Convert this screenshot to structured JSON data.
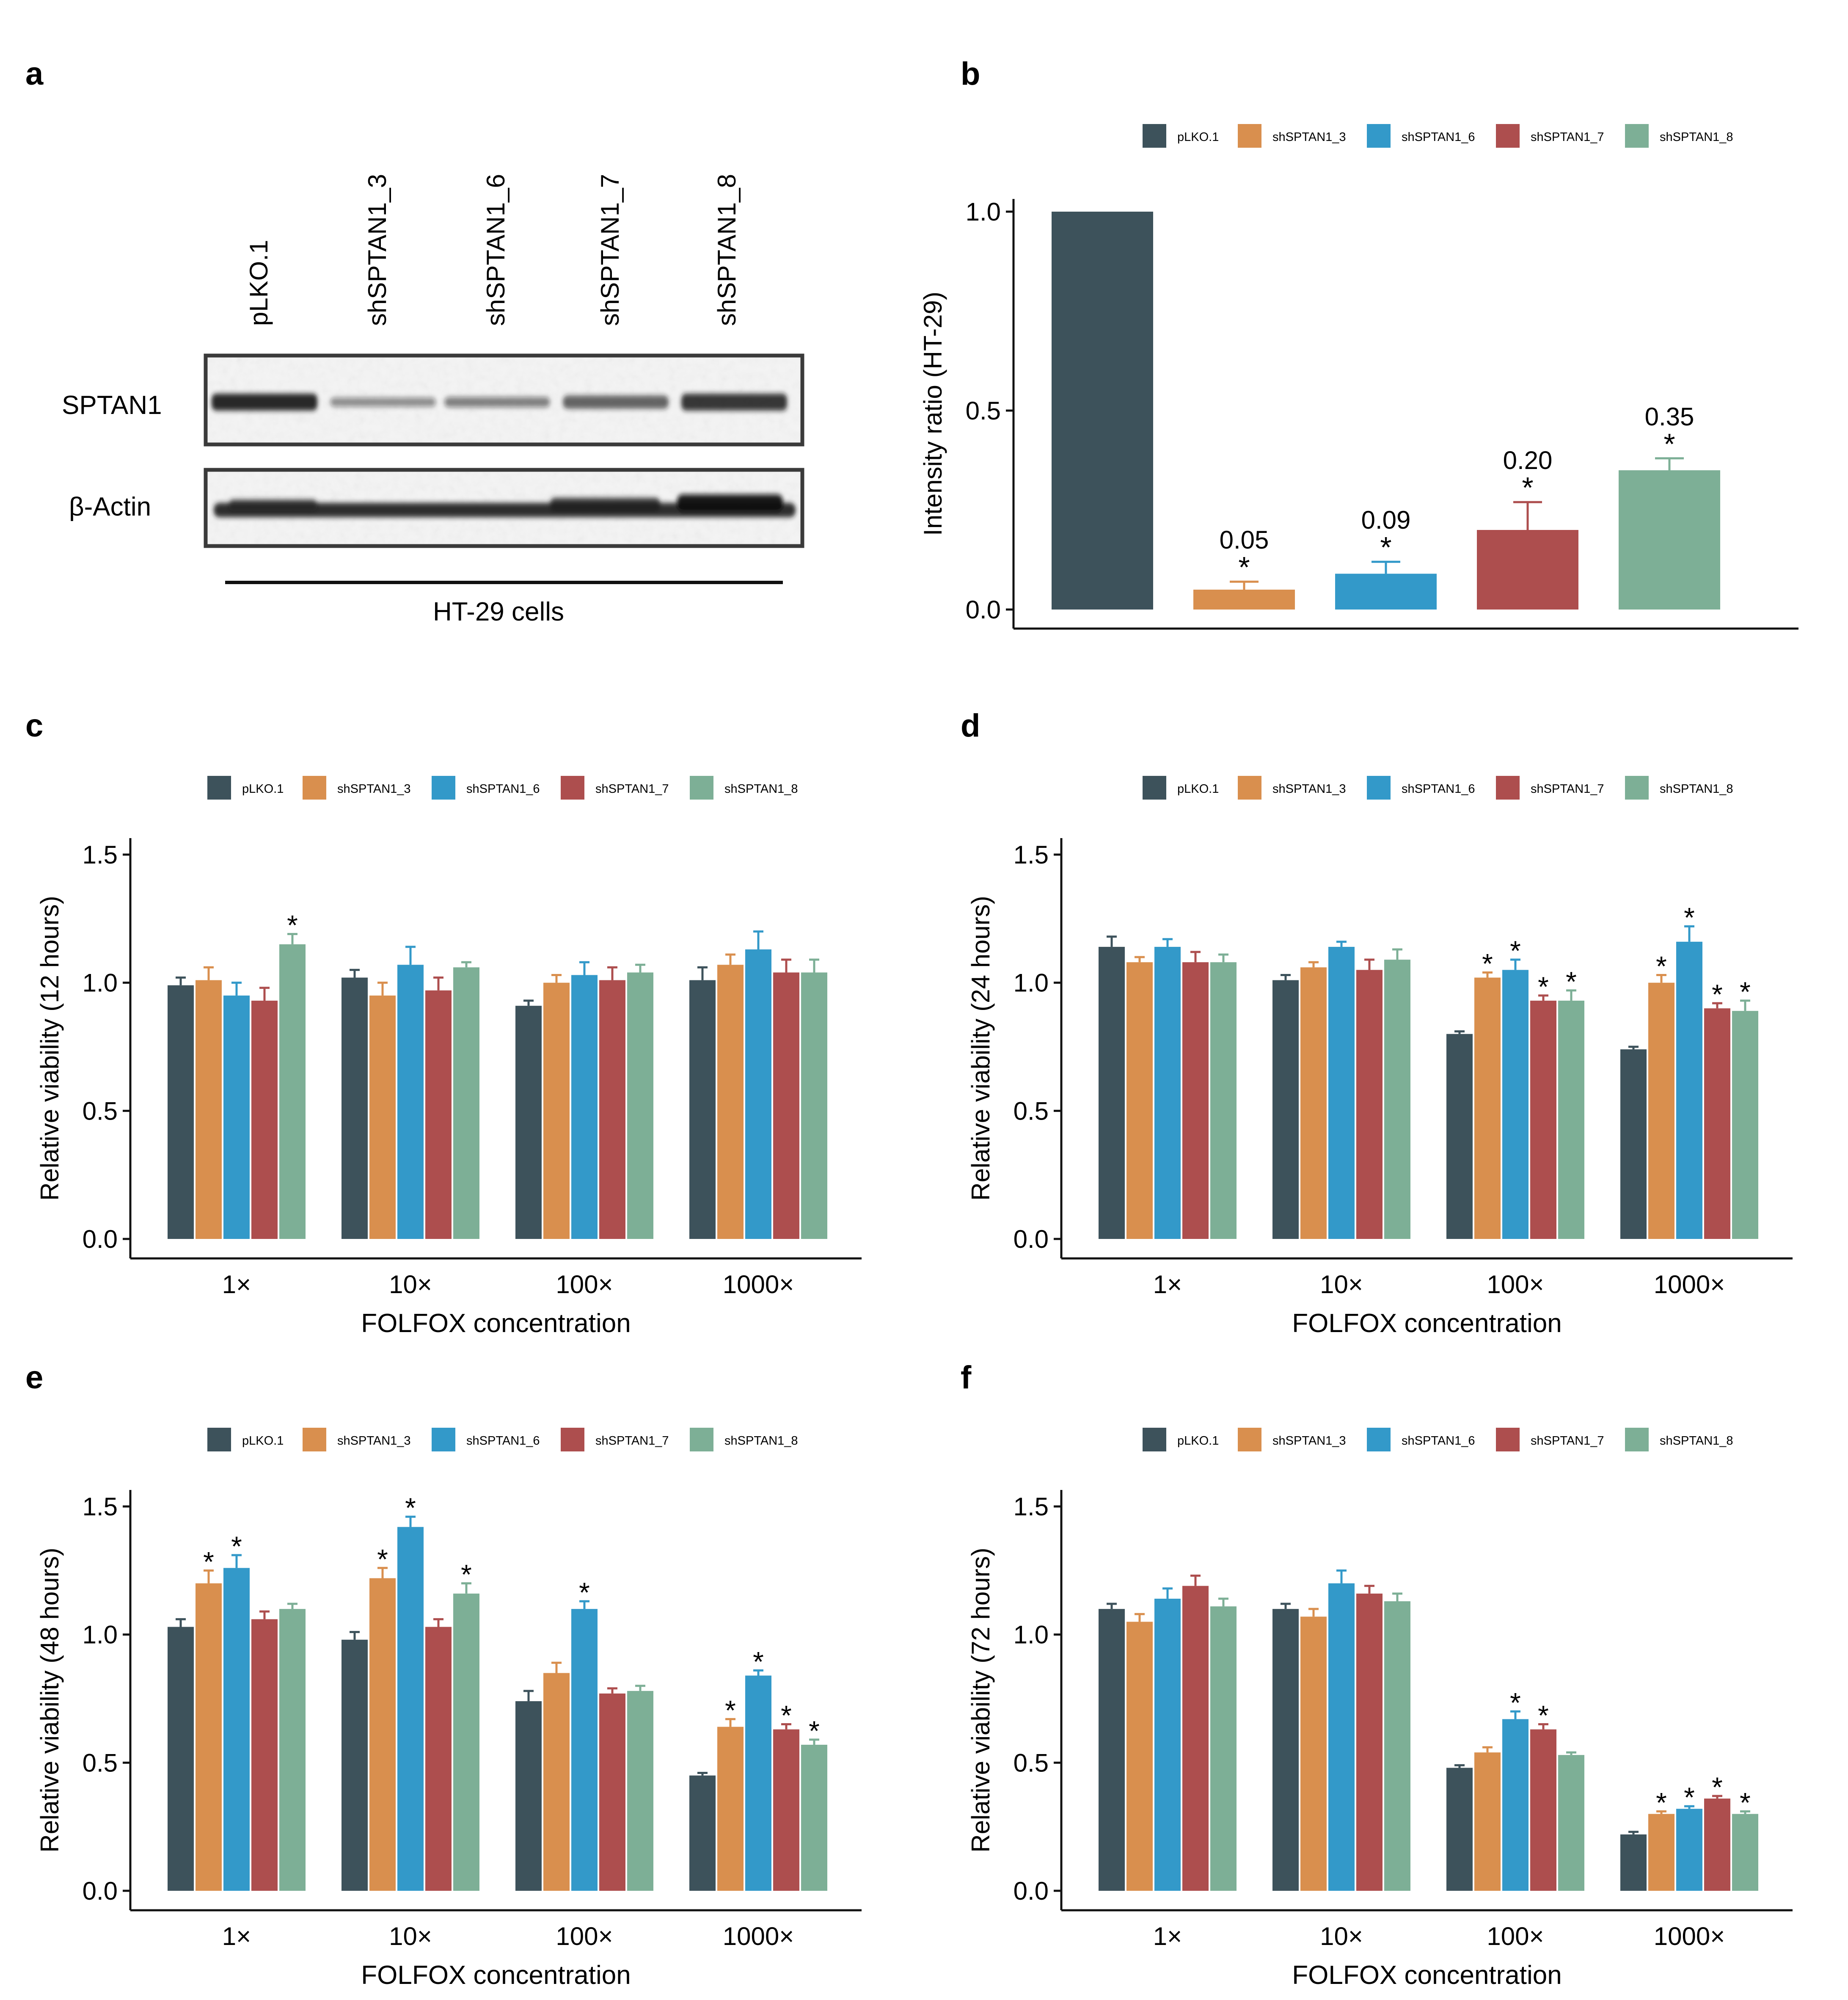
{
  "colors": {
    "pLKO.1": "#3d525b",
    "shSPTAN1_3": "#d98f4e",
    "shSPTAN1_6": "#3399c9",
    "shSPTAN1_7": "#ad4e4e",
    "shSPTAN1_8": "#7daf96"
  },
  "panel_a": {
    "label": "a",
    "lanes": [
      "pLKO.1",
      "shSPTAN1_3",
      "shSPTAN1_6",
      "shSPTAN1_7",
      "shSPTAN1_8"
    ],
    "row1_label": "SPTAN1",
    "row2_label": "β-Actin",
    "cell_line_label": "HT-29 cells",
    "sptan1_band_intensity": [
      1.0,
      0.05,
      0.09,
      0.2,
      0.35
    ]
  },
  "chart_data": [
    {
      "panel": "b",
      "type": "bar",
      "title": "",
      "xlabel": "",
      "ylabel": "Intensity ratio (HT-29)",
      "ylim": [
        0,
        1.0
      ],
      "yticks": [
        "0.0",
        "0.5",
        "1.0"
      ],
      "legend": [
        "pLKO.1",
        "shSPTAN1_3",
        "shSPTAN1_6",
        "shSPTAN1_7",
        "shSPTAN1_8"
      ],
      "legend_position": "top",
      "series": [
        {
          "name": "pLKO.1",
          "value": 1.0,
          "err": 0,
          "label": "",
          "sig": ""
        },
        {
          "name": "shSPTAN1_3",
          "value": 0.05,
          "err": 0.02,
          "label": "0.05",
          "sig": "*"
        },
        {
          "name": "shSPTAN1_6",
          "value": 0.09,
          "err": 0.03,
          "label": "0.09",
          "sig": "*"
        },
        {
          "name": "shSPTAN1_7",
          "value": 0.2,
          "err": 0.07,
          "label": "0.20",
          "sig": "*"
        },
        {
          "name": "shSPTAN1_8",
          "value": 0.35,
          "err": 0.03,
          "label": "0.35",
          "sig": "*"
        }
      ]
    },
    {
      "panel": "c",
      "type": "bar",
      "xlabel": "FOLFOX concentration",
      "ylabel": "Relative viability (12 hours)",
      "ylim": [
        0,
        1.5
      ],
      "yticks": [
        "0.0",
        "0.5",
        "1.0",
        "1.5"
      ],
      "categories": [
        "1×",
        "10×",
        "100×",
        "1000×"
      ],
      "legend_position": "top",
      "series": [
        {
          "name": "pLKO.1",
          "values": [
            0.99,
            1.02,
            0.91,
            1.01
          ],
          "err": [
            0.03,
            0.03,
            0.02,
            0.05
          ],
          "sig": [
            "",
            "",
            "",
            ""
          ]
        },
        {
          "name": "shSPTAN1_3",
          "values": [
            1.01,
            0.95,
            1.0,
            1.07
          ],
          "err": [
            0.05,
            0.05,
            0.03,
            0.04
          ],
          "sig": [
            "",
            "",
            "",
            ""
          ]
        },
        {
          "name": "shSPTAN1_6",
          "values": [
            0.95,
            1.07,
            1.03,
            1.13
          ],
          "err": [
            0.05,
            0.07,
            0.05,
            0.07
          ],
          "sig": [
            "",
            "",
            "",
            ""
          ]
        },
        {
          "name": "shSPTAN1_7",
          "values": [
            0.93,
            0.97,
            1.01,
            1.04
          ],
          "err": [
            0.05,
            0.05,
            0.05,
            0.05
          ],
          "sig": [
            "",
            "",
            "",
            ""
          ]
        },
        {
          "name": "shSPTAN1_8",
          "values": [
            1.15,
            1.06,
            1.04,
            1.04
          ],
          "err": [
            0.04,
            0.02,
            0.03,
            0.05
          ],
          "sig": [
            "*",
            "",
            "",
            ""
          ]
        }
      ]
    },
    {
      "panel": "d",
      "type": "bar",
      "xlabel": "FOLFOX concentration",
      "ylabel": "Relative viability (24 hours)",
      "ylim": [
        0,
        1.5
      ],
      "yticks": [
        "0.0",
        "0.5",
        "1.0",
        "1.5"
      ],
      "categories": [
        "1×",
        "10×",
        "100×",
        "1000×"
      ],
      "legend_position": "top",
      "series": [
        {
          "name": "pLKO.1",
          "values": [
            1.14,
            1.01,
            0.8,
            0.74
          ],
          "err": [
            0.04,
            0.02,
            0.01,
            0.01
          ],
          "sig": [
            "",
            "",
            "",
            ""
          ]
        },
        {
          "name": "shSPTAN1_3",
          "values": [
            1.08,
            1.06,
            1.02,
            1.0
          ],
          "err": [
            0.02,
            0.02,
            0.02,
            0.03
          ],
          "sig": [
            "",
            "",
            "*",
            "*"
          ]
        },
        {
          "name": "shSPTAN1_6",
          "values": [
            1.14,
            1.14,
            1.05,
            1.16
          ],
          "err": [
            0.03,
            0.02,
            0.04,
            0.06
          ],
          "sig": [
            "",
            "",
            "*",
            "*"
          ]
        },
        {
          "name": "shSPTAN1_7",
          "values": [
            1.08,
            1.05,
            0.93,
            0.9
          ],
          "err": [
            0.04,
            0.04,
            0.02,
            0.02
          ],
          "sig": [
            "",
            "",
            "*",
            "*"
          ]
        },
        {
          "name": "shSPTAN1_8",
          "values": [
            1.08,
            1.09,
            0.93,
            0.89
          ],
          "err": [
            0.03,
            0.04,
            0.04,
            0.04
          ],
          "sig": [
            "",
            "",
            "*",
            "*"
          ]
        }
      ]
    },
    {
      "panel": "e",
      "type": "bar",
      "xlabel": "FOLFOX concentration",
      "ylabel": "Relative viability (48 hours)",
      "ylim": [
        0,
        1.5
      ],
      "yticks": [
        "0.0",
        "0.5",
        "1.0",
        "1.5"
      ],
      "categories": [
        "1×",
        "10×",
        "100×",
        "1000×"
      ],
      "legend_position": "top",
      "series": [
        {
          "name": "pLKO.1",
          "values": [
            1.03,
            0.98,
            0.74,
            0.45
          ],
          "err": [
            0.03,
            0.03,
            0.04,
            0.01
          ],
          "sig": [
            "",
            "",
            "",
            ""
          ]
        },
        {
          "name": "shSPTAN1_3",
          "values": [
            1.2,
            1.22,
            0.85,
            0.64
          ],
          "err": [
            0.05,
            0.04,
            0.04,
            0.03
          ],
          "sig": [
            "*",
            "*",
            "",
            "*"
          ]
        },
        {
          "name": "shSPTAN1_6",
          "values": [
            1.26,
            1.42,
            1.1,
            0.84
          ],
          "err": [
            0.05,
            0.04,
            0.03,
            0.02
          ],
          "sig": [
            "*",
            "*",
            "*",
            "*"
          ]
        },
        {
          "name": "shSPTAN1_7",
          "values": [
            1.06,
            1.03,
            0.77,
            0.63
          ],
          "err": [
            0.03,
            0.03,
            0.02,
            0.02
          ],
          "sig": [
            "",
            "",
            "",
            "*"
          ]
        },
        {
          "name": "shSPTAN1_8",
          "values": [
            1.1,
            1.16,
            0.78,
            0.57
          ],
          "err": [
            0.02,
            0.04,
            0.02,
            0.02
          ],
          "sig": [
            "",
            "*",
            "",
            "*"
          ]
        }
      ]
    },
    {
      "panel": "f",
      "type": "bar",
      "xlabel": "FOLFOX concentration",
      "ylabel": "Relative viability (72 hours)",
      "ylim": [
        0,
        1.5
      ],
      "yticks": [
        "0.0",
        "0.5",
        "1.0",
        "1.5"
      ],
      "categories": [
        "1×",
        "10×",
        "100×",
        "1000×"
      ],
      "legend_position": "top",
      "series": [
        {
          "name": "pLKO.1",
          "values": [
            1.1,
            1.1,
            0.48,
            0.22
          ],
          "err": [
            0.02,
            0.02,
            0.01,
            0.01
          ],
          "sig": [
            "",
            "",
            "",
            ""
          ]
        },
        {
          "name": "shSPTAN1_3",
          "values": [
            1.05,
            1.07,
            0.54,
            0.3
          ],
          "err": [
            0.03,
            0.03,
            0.02,
            0.01
          ],
          "sig": [
            "",
            "",
            "",
            "*"
          ]
        },
        {
          "name": "shSPTAN1_6",
          "values": [
            1.14,
            1.2,
            0.67,
            0.32
          ],
          "err": [
            0.04,
            0.05,
            0.03,
            0.01
          ],
          "sig": [
            "",
            "",
            "*",
            "*"
          ]
        },
        {
          "name": "shSPTAN1_7",
          "values": [
            1.19,
            1.16,
            0.63,
            0.36
          ],
          "err": [
            0.04,
            0.03,
            0.02,
            0.01
          ],
          "sig": [
            "",
            "",
            "*",
            "*"
          ]
        },
        {
          "name": "shSPTAN1_8",
          "values": [
            1.11,
            1.13,
            0.53,
            0.3
          ],
          "err": [
            0.03,
            0.03,
            0.01,
            0.01
          ],
          "sig": [
            "",
            "",
            "",
            "*"
          ]
        }
      ]
    }
  ]
}
